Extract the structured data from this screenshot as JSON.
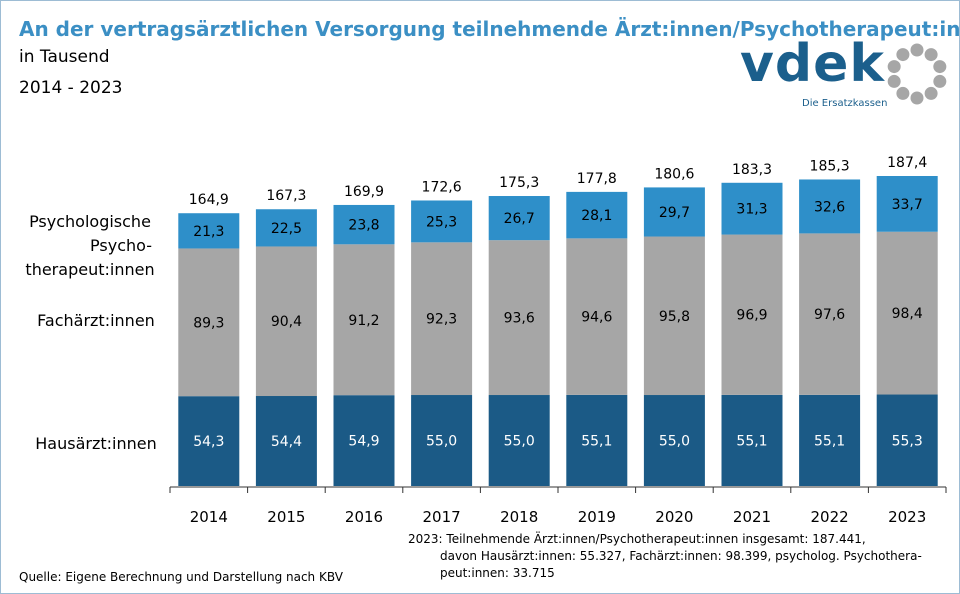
{
  "header": {
    "title": "An der vertragsärztlichen Versorgung teilnehmende Ärzt:innen/Psychotherapeut:innen",
    "subtitle": "in Tausend",
    "period": "2014 - 2023"
  },
  "logo": {
    "wordmark": "vdek",
    "tagline": "Die Ersatzkassen",
    "color": "#1b5f8c",
    "ring_color": "#a6a6a6"
  },
  "row_labels": {
    "psych_line1": "Psychologische",
    "psych_line2": "Psycho-",
    "psych_line3": "therapeut:innen",
    "fach": "Fachärzt:innen",
    "haus": "Hausärzt:innen"
  },
  "note": {
    "line1": "2023: Teilnehmende Ärzt:innen/Psychotherapeut:innen  insgesamt: 187.441,",
    "line2": "davon Hausärzt:innen: 55.327,  Fachärzt:innen: 98.399, psycholog. Psychothera-",
    "line3": "peut:innen: 33.715"
  },
  "source": "Quelle: Eigene Berechnung und Darstellung nach KBV",
  "chart_data": {
    "type": "bar",
    "stacked": true,
    "categories": [
      "2014",
      "2015",
      "2016",
      "2017",
      "2018",
      "2019",
      "2020",
      "2021",
      "2022",
      "2023"
    ],
    "series": [
      {
        "name": "Hausärzt:innen",
        "color": "#1b5a86",
        "values": [
          54.3,
          54.4,
          54.9,
          55.0,
          55.0,
          55.1,
          55.0,
          55.1,
          55.1,
          55.3
        ],
        "labels": [
          "54,3",
          "54,4",
          "54,9",
          "55,0",
          "55,0",
          "55,1",
          "55,0",
          "55,1",
          "55,1",
          "55,3"
        ],
        "label_color": "#ffffff"
      },
      {
        "name": "Fachärzt:innen",
        "color": "#a6a6a6",
        "values": [
          89.3,
          90.4,
          91.2,
          92.3,
          93.6,
          94.6,
          95.8,
          96.9,
          97.6,
          98.4
        ],
        "labels": [
          "89,3",
          "90,4",
          "91,2",
          "92,3",
          "93,6",
          "94,6",
          "95,8",
          "96,9",
          "97,6",
          "98,4"
        ],
        "label_color": "#000000"
      },
      {
        "name": "Psychologische Psychotherapeut:innen",
        "color": "#2e8fc9",
        "values": [
          21.3,
          22.5,
          23.8,
          25.3,
          26.7,
          28.1,
          29.7,
          31.3,
          32.6,
          33.7
        ],
        "labels": [
          "21,3",
          "22,5",
          "23,8",
          "25,3",
          "26,7",
          "28,1",
          "29,7",
          "31,3",
          "32,6",
          "33,7"
        ],
        "label_color": "#000000"
      }
    ],
    "totals": [
      164.9,
      167.3,
      169.9,
      172.6,
      175.3,
      177.8,
      180.6,
      183.3,
      185.3,
      187.4
    ],
    "total_labels": [
      "164,9",
      "167,3",
      "169,9",
      "172,6",
      "175,3",
      "177,8",
      "180,6",
      "183,3",
      "185,3",
      "187,4"
    ],
    "ylim": [
      0,
      200
    ],
    "grid": false,
    "legend": "none"
  }
}
